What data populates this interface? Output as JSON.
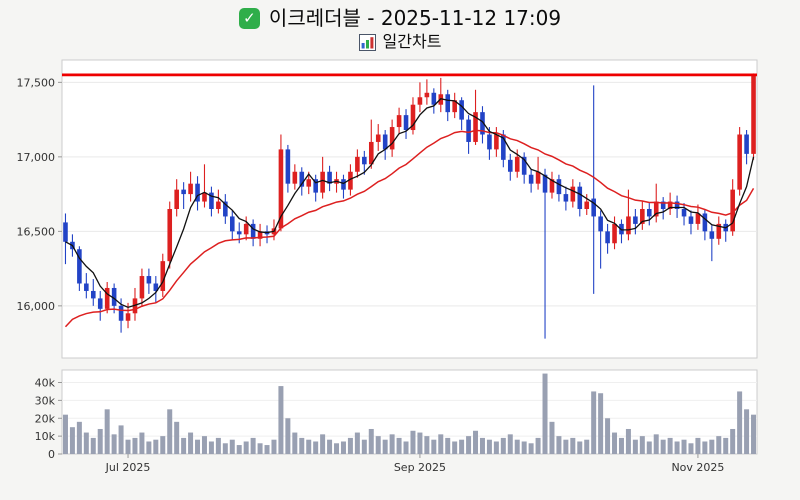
{
  "header": {
    "title": "이크레더블 - 2025-11-12 17:09",
    "subtitle": "일간차트",
    "check_icon": "✓"
  },
  "chart_data": {
    "type": "candlestick_with_volume",
    "title": "이크레더블 - 2025-11-12 17:09",
    "subtitle": "일간차트",
    "price_axis": {
      "range": [
        15650,
        17650
      ],
      "ticks": [
        16000,
        16500,
        17000,
        17500
      ],
      "tick_labels": [
        "16,000",
        "16,500",
        "17,000",
        "17,500"
      ]
    },
    "volume_axis": {
      "range": [
        0,
        47000
      ],
      "ticks": [
        0,
        10000,
        20000,
        30000,
        40000
      ],
      "tick_labels": [
        "0",
        "10k",
        "20k",
        "30k",
        "40k"
      ]
    },
    "x_ticks": [
      {
        "index": 9,
        "label": "Jul 2025"
      },
      {
        "index": 51,
        "label": "Sep 2025"
      },
      {
        "index": 91,
        "label": "Nov 2025"
      }
    ],
    "resistance_line": 17550,
    "indicators": {
      "ma_short_period": 5,
      "ma_long_period": 20,
      "ma_long_seed": 15800
    },
    "colors": {
      "up": "#dd2020",
      "down": "#2243c6",
      "ma_short": "#111111",
      "ma_long": "#dd2020",
      "resistance": "#ee0000",
      "volume_bar": "#99a0b2",
      "plot_bg": "#ffffff",
      "plot_border": "#cccccc",
      "grid": "#e9e9e9"
    },
    "candles": [
      [
        16560,
        16620,
        16280,
        16430
      ],
      [
        16430,
        16480,
        16330,
        16380
      ],
      [
        16380,
        16400,
        16100,
        16150
      ],
      [
        16150,
        16220,
        16050,
        16100
      ],
      [
        16100,
        16180,
        16000,
        16050
      ],
      [
        16050,
        16100,
        15900,
        15980
      ],
      [
        15980,
        16160,
        15950,
        16120
      ],
      [
        16120,
        16150,
        15950,
        16000
      ],
      [
        16000,
        16050,
        15820,
        15900
      ],
      [
        15900,
        16020,
        15850,
        15950
      ],
      [
        15950,
        16120,
        15900,
        16050
      ],
      [
        16050,
        16250,
        16000,
        16200
      ],
      [
        16200,
        16250,
        16080,
        16150
      ],
      [
        16150,
        16200,
        16020,
        16100
      ],
      [
        16100,
        16350,
        16060,
        16300
      ],
      [
        16300,
        16700,
        16250,
        16650
      ],
      [
        16650,
        16850,
        16600,
        16780
      ],
      [
        16780,
        16830,
        16650,
        16750
      ],
      [
        16750,
        16900,
        16700,
        16820
      ],
      [
        16820,
        16870,
        16640,
        16700
      ],
      [
        16700,
        16950,
        16660,
        16760
      ],
      [
        16760,
        16800,
        16600,
        16650
      ],
      [
        16650,
        16780,
        16620,
        16700
      ],
      [
        16700,
        16750,
        16550,
        16600
      ],
      [
        16600,
        16640,
        16440,
        16500
      ],
      [
        16500,
        16560,
        16420,
        16480
      ],
      [
        16480,
        16600,
        16440,
        16550
      ],
      [
        16550,
        16580,
        16400,
        16450
      ],
      [
        16450,
        16550,
        16400,
        16500
      ],
      [
        16500,
        16540,
        16420,
        16480
      ],
      [
        16480,
        16580,
        16440,
        16520
      ],
      [
        16520,
        17150,
        16500,
        17050
      ],
      [
        17050,
        17080,
        16760,
        16820
      ],
      [
        16820,
        16950,
        16780,
        16900
      ],
      [
        16900,
        16930,
        16740,
        16800
      ],
      [
        16800,
        16900,
        16750,
        16850
      ],
      [
        16850,
        16880,
        16700,
        16760
      ],
      [
        16760,
        17000,
        16720,
        16900
      ],
      [
        16900,
        16940,
        16770,
        16820
      ],
      [
        16820,
        16900,
        16760,
        16850
      ],
      [
        16850,
        16880,
        16720,
        16780
      ],
      [
        16780,
        16950,
        16740,
        16900
      ],
      [
        16900,
        17050,
        16860,
        17000
      ],
      [
        17000,
        17040,
        16880,
        16950
      ],
      [
        16950,
        17250,
        16920,
        17100
      ],
      [
        17100,
        17220,
        17040,
        17150
      ],
      [
        17150,
        17180,
        16980,
        17050
      ],
      [
        17050,
        17250,
        17000,
        17200
      ],
      [
        17200,
        17330,
        17150,
        17280
      ],
      [
        17280,
        17320,
        17120,
        17180
      ],
      [
        17180,
        17400,
        17150,
        17350
      ],
      [
        17350,
        17500,
        17300,
        17400
      ],
      [
        17400,
        17520,
        17350,
        17430
      ],
      [
        17430,
        17460,
        17290,
        17350
      ],
      [
        17350,
        17530,
        17300,
        17420
      ],
      [
        17420,
        17450,
        17240,
        17300
      ],
      [
        17300,
        17430,
        17260,
        17380
      ],
      [
        17380,
        17400,
        17180,
        17250
      ],
      [
        17250,
        17280,
        17020,
        17100
      ],
      [
        17100,
        17450,
        17080,
        17300
      ],
      [
        17300,
        17340,
        17090,
        17150
      ],
      [
        17150,
        17200,
        16980,
        17050
      ],
      [
        17050,
        17200,
        17000,
        17150
      ],
      [
        17150,
        17180,
        16930,
        16980
      ],
      [
        16980,
        17020,
        16840,
        16900
      ],
      [
        16900,
        17050,
        16860,
        17000
      ],
      [
        17000,
        17030,
        16820,
        16880
      ],
      [
        16880,
        16920,
        16760,
        16820
      ],
      [
        16820,
        17000,
        16780,
        16900
      ],
      [
        16880,
        16920,
        15780,
        16760
      ],
      [
        16760,
        16900,
        16720,
        16850
      ],
      [
        16850,
        16880,
        16700,
        16750
      ],
      [
        16750,
        16800,
        16640,
        16700
      ],
      [
        16700,
        16850,
        16660,
        16800
      ],
      [
        16800,
        16830,
        16600,
        16650
      ],
      [
        16650,
        16750,
        16610,
        16700
      ],
      [
        16720,
        17480,
        16080,
        16600
      ],
      [
        16600,
        16640,
        16250,
        16500
      ],
      [
        16500,
        16550,
        16350,
        16420
      ],
      [
        16420,
        16600,
        16380,
        16550
      ],
      [
        16550,
        16580,
        16420,
        16480
      ],
      [
        16480,
        16780,
        16440,
        16600
      ],
      [
        16600,
        16650,
        16480,
        16550
      ],
      [
        16550,
        16700,
        16510,
        16650
      ],
      [
        16650,
        16690,
        16540,
        16600
      ],
      [
        16600,
        16820,
        16560,
        16700
      ],
      [
        16700,
        16730,
        16580,
        16650
      ],
      [
        16650,
        16760,
        16610,
        16700
      ],
      [
        16700,
        16740,
        16590,
        16650
      ],
      [
        16650,
        16690,
        16540,
        16600
      ],
      [
        16600,
        16640,
        16480,
        16550
      ],
      [
        16550,
        16680,
        16510,
        16620
      ],
      [
        16620,
        16650,
        16440,
        16500
      ],
      [
        16500,
        16540,
        16300,
        16450
      ],
      [
        16450,
        16600,
        16410,
        16550
      ],
      [
        16550,
        16580,
        16430,
        16500
      ],
      [
        16500,
        16850,
        16470,
        16780
      ],
      [
        16780,
        17200,
        16740,
        17150
      ],
      [
        17150,
        17180,
        16950,
        17020
      ],
      [
        17020,
        17560,
        16980,
        17550
      ]
    ],
    "volume": [
      22000,
      15000,
      18000,
      12000,
      9000,
      14000,
      25000,
      11000,
      16000,
      8000,
      9000,
      12000,
      7000,
      8000,
      10000,
      25000,
      18000,
      9000,
      12000,
      8000,
      10000,
      7000,
      9000,
      6000,
      8000,
      5000,
      7000,
      9000,
      6000,
      5000,
      8000,
      38000,
      20000,
      12000,
      9000,
      8000,
      7000,
      11000,
      8000,
      6000,
      7000,
      9000,
      12000,
      8000,
      14000,
      10000,
      8000,
      11000,
      9000,
      7000,
      13000,
      12000,
      10000,
      8000,
      11000,
      9000,
      7000,
      8000,
      10000,
      13000,
      9000,
      8000,
      7000,
      9000,
      11000,
      8000,
      7000,
      6000,
      9000,
      45000,
      18000,
      10000,
      8000,
      9000,
      7000,
      8000,
      35000,
      34000,
      20000,
      12000,
      9000,
      14000,
      8000,
      10000,
      7000,
      11000,
      8000,
      9000,
      7000,
      8000,
      6000,
      9000,
      7000,
      8000,
      10000,
      9000,
      14000,
      35000,
      25000,
      22000
    ]
  }
}
